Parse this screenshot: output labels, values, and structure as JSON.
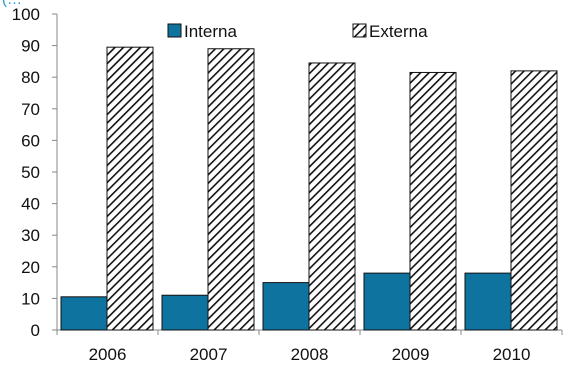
{
  "header": {
    "cut_title": "(…"
  },
  "chart_data": {
    "type": "bar",
    "categories": [
      "2006",
      "2007",
      "2008",
      "2009",
      "2010"
    ],
    "series": [
      {
        "name": "Interna",
        "values": [
          10.5,
          11,
          15,
          18,
          18
        ],
        "color": "#0f73a0",
        "fill": "solid"
      },
      {
        "name": "Externa",
        "values": [
          89.5,
          89,
          84.5,
          81.5,
          82
        ],
        "color": "#ffffff",
        "fill": "diagonal-hatch"
      }
    ],
    "ylim": [
      0,
      100
    ],
    "yticks": [
      "0",
      "10",
      "20",
      "30",
      "40",
      "50",
      "60",
      "70",
      "80",
      "90",
      "100"
    ],
    "legend": {
      "position": "top-center",
      "entries": [
        "Interna",
        "Externa"
      ]
    },
    "grid": false,
    "title": "",
    "xlabel": "",
    "ylabel": ""
  }
}
